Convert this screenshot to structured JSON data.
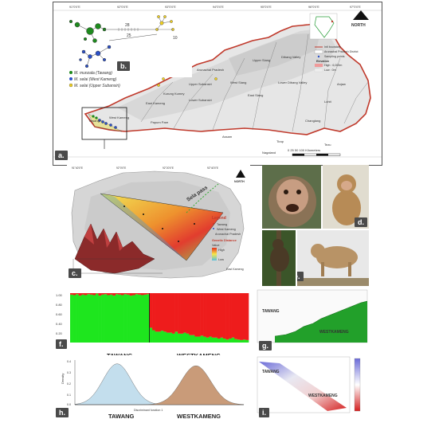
{
  "panels": {
    "a": "a.",
    "b": "b.",
    "c": "c.",
    "d": "d.",
    "e": "e.",
    "f": "f.",
    "g": "g.",
    "h": "h.",
    "i": "i."
  },
  "map_a": {
    "coords_top": [
      "91°0'0\"E",
      "92°0'0\"E",
      "93°0'0\"E",
      "94°0'0\"E",
      "95°0'0\"E",
      "96°0'0\"E",
      "97°0'0\"E"
    ],
    "coords_left": [
      "28°0'0\"N",
      "27°0'0\"N"
    ],
    "north": "NORTH",
    "legend_species": [
      "M. munzala (Tawang)",
      "M. selai (West Kameng)",
      "M. selai (Upper Subansiri)"
    ],
    "legend_map": [
      "Intl boundary",
      "Arunachal Pradesh District",
      "Sampling points",
      "Elevation",
      "High : 6,000m",
      "Low : 0m"
    ],
    "districts": [
      "Tawang",
      "West Kameng",
      "East Kameng",
      "Papum Pare",
      "Kurung Kumey",
      "Lower Subansiri",
      "Upper Subansiri",
      "West Siang",
      "East Siang",
      "Upper Siang",
      "Dibang Valley",
      "Lower Dibang Valley",
      "Lohit",
      "Changlang",
      "Tirap",
      "Anjaw",
      "Arunachal Pradesh"
    ],
    "states": [
      "Assam",
      "Nagaland",
      "Tezu"
    ],
    "scale": "0  25  50     100 Kilometers",
    "network_nums": [
      "28",
      "25",
      "10",
      "18",
      "26"
    ]
  },
  "map_c": {
    "coords_top": [
      "91°40'0\"E",
      "92°0'0\"E",
      "92°20'0\"E",
      "92°40'0\"E"
    ],
    "north": "NORTH",
    "sela": "Sela pass",
    "legend_title": "Legend",
    "legend_items": [
      "Tawang",
      "West Kameng",
      "Arunachal Pradesh",
      "Genetic Distance",
      "Value",
      "High",
      "Low"
    ],
    "places": [
      "Tawang",
      "West Kameng",
      "East Kameng"
    ]
  },
  "chart_f": {
    "y_ticks": [
      "1.00",
      "0.80",
      "0.60",
      "0.40",
      "0.20",
      "0.00"
    ],
    "x_groups": [
      "TAWANG",
      "WESTKAMENG"
    ],
    "colors": {
      "k1": "#1ee61e",
      "k2": "#ee1c1c"
    },
    "cluster1_share_tawang": [
      0.97,
      0.96,
      0.98,
      0.95,
      0.97,
      0.96,
      0.98,
      0.97,
      0.96,
      0.99,
      0.95,
      0.97,
      0.98,
      0.96,
      0.97,
      0.95,
      0.98,
      0.97,
      0.96,
      0.98,
      0.97,
      0.95,
      0.96,
      0.98,
      0.97,
      0.96,
      0.97,
      0.98
    ],
    "cluster1_share_wk": [
      0.3,
      0.25,
      0.22,
      0.22,
      0.24,
      0.22,
      0.2,
      0.2,
      0.18,
      0.22,
      0.18,
      0.18,
      0.2,
      0.18,
      0.15,
      0.15,
      0.12,
      0.12,
      0.14,
      0.12,
      0.1,
      0.12,
      0.1,
      0.1,
      0.08,
      0.1,
      0.08,
      0.06,
      0.08,
      0.1,
      0.07,
      0.06,
      0.05,
      0.06,
      0.05
    ]
  },
  "chart_g": {
    "labels": [
      "TAWANG",
      "WESTKAMENG"
    ],
    "y_ticks": [
      "",
      "",
      "",
      "",
      ""
    ],
    "x_ticks": [
      "",
      "",
      "",
      "",
      "",
      ""
    ]
  },
  "chart_h": {
    "y_label": "Density",
    "x_label": "Discriminant function 1",
    "groups": [
      "TAWANG",
      "WESTKAMENG"
    ],
    "colors": {
      "tawang": "#b9d8ea",
      "wk": "#c08a62"
    },
    "tawang": {
      "mean": -3.0,
      "sd": 1.0
    },
    "westkameng": {
      "mean": 2.6,
      "sd": 1.05
    },
    "y_ticks": [
      "0.4",
      "0.3",
      "0.2",
      "0.1",
      "0.0"
    ]
  },
  "chart_i": {
    "labels": [
      "TAWANG",
      "WESTKAMENG"
    ],
    "colorbar_ticks": [
      "",
      "",
      "",
      "",
      "",
      ""
    ]
  },
  "chart_data": [
    {
      "type": "bar",
      "title": "",
      "categories": [
        "TAWANG",
        "WESTKAMENG"
      ],
      "series": [
        {
          "name": "",
          "values": [
            0.97,
            0.12
          ]
        },
        {
          "name": "",
          "values": [
            0.03,
            0.88
          ]
        }
      ],
      "ylim": [
        0,
        1
      ]
    },
    {
      "type": "area",
      "title": "",
      "xlabel": "Discriminant function 1",
      "ylabel": "Density",
      "series": [
        {
          "name": "TAWANG",
          "mean": -3.0,
          "sd": 1.0
        },
        {
          "name": "WESTKAMENG",
          "mean": 2.6,
          "sd": 1.05
        }
      ],
      "ylim": [
        0,
        0.4
      ]
    }
  ]
}
